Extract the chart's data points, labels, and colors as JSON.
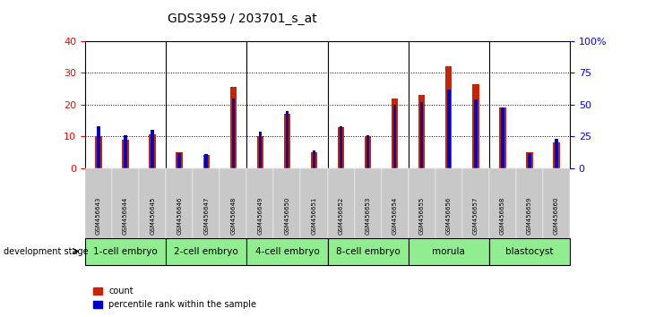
{
  "title": "GDS3959 / 203701_s_at",
  "samples": [
    "GSM456643",
    "GSM456644",
    "GSM456645",
    "GSM456646",
    "GSM456647",
    "GSM456648",
    "GSM456649",
    "GSM456650",
    "GSM456651",
    "GSM456652",
    "GSM456653",
    "GSM456654",
    "GSM456655",
    "GSM456656",
    "GSM456657",
    "GSM456658",
    "GSM456659",
    "GSM456660"
  ],
  "count_values": [
    10,
    9,
    10.5,
    5,
    4,
    25.5,
    10,
    17,
    5,
    13,
    10,
    22,
    23,
    32,
    26.5,
    19,
    5,
    8
  ],
  "percentile_values": [
    33,
    26,
    30,
    12,
    11,
    55,
    29,
    45,
    14,
    33,
    26,
    50,
    52,
    62,
    54,
    48,
    12,
    23
  ],
  "stages": [
    {
      "label": "1-cell embryo",
      "start": 0,
      "end": 3
    },
    {
      "label": "2-cell embryo",
      "start": 3,
      "end": 6
    },
    {
      "label": "4-cell embryo",
      "start": 6,
      "end": 9
    },
    {
      "label": "8-cell embryo",
      "start": 9,
      "end": 12
    },
    {
      "label": "morula",
      "start": 12,
      "end": 15
    },
    {
      "label": "blastocyst",
      "start": 15,
      "end": 18
    }
  ],
  "left_ylim": [
    0,
    40
  ],
  "right_ylim": [
    0,
    100
  ],
  "left_yticks": [
    0,
    10,
    20,
    30,
    40
  ],
  "right_yticks": [
    0,
    25,
    50,
    75,
    100
  ],
  "right_yticklabels": [
    "0",
    "25",
    "50",
    "75",
    "100%"
  ],
  "bar_color": "#CC2200",
  "percentile_color": "#0000CC",
  "bg_color": "#FFFFFF",
  "tick_bg": "#C8C8C8",
  "stage_bg": "#90EE90"
}
